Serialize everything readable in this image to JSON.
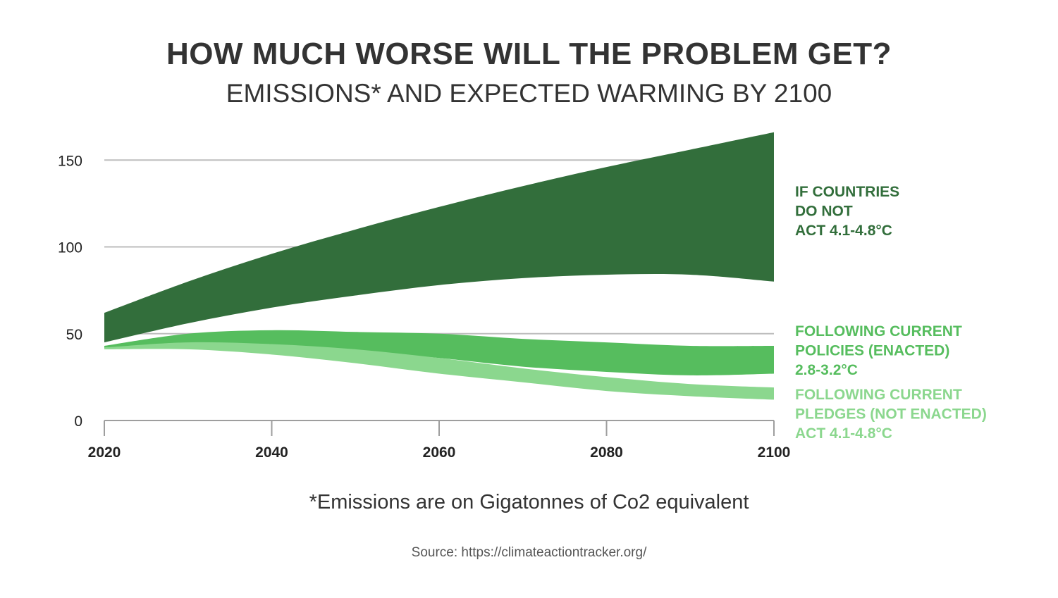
{
  "header": {
    "title": "HOW MUCH WORSE WILL THE PROBLEM GET?",
    "subtitle": "EMISSIONS* AND EXPECTED WARMING BY 2100"
  },
  "footer": {
    "footnote": "*Emissions are on Gigatonnes of Co2 equivalent",
    "source": "Source: https://climateactiontracker.org/"
  },
  "chart_data": {
    "type": "area",
    "title": "",
    "xlabel": "",
    "ylabel": "",
    "xlim": [
      2020,
      2100
    ],
    "ylim": [
      0,
      160
    ],
    "x_ticks": [
      2020,
      2040,
      2060,
      2080,
      2100
    ],
    "y_ticks": [
      0,
      50,
      100,
      150
    ],
    "grid": "horizontal",
    "legend": "right",
    "series": [
      {
        "name": "IF COUNTRIES DO NOT ACT 4.1-4.8°C",
        "label_lines": [
          "IF COUNTRIES",
          "DO NOT",
          "ACT 4.1-4.8°C"
        ],
        "color": "#326e3b",
        "x": [
          2020,
          2030,
          2040,
          2050,
          2060,
          2070,
          2080,
          2090,
          2100
        ],
        "upper": [
          62,
          80,
          96,
          110,
          123,
          135,
          146,
          156,
          166
        ],
        "lower": [
          45,
          56,
          65,
          72,
          78,
          82,
          84,
          84,
          80
        ]
      },
      {
        "name": "FOLLOWING CURRENT POLICIES (ENACTED) 2.8-3.2°C",
        "label_lines": [
          "FOLLOWING CURRENT",
          "POLICIES (ENACTED)",
          "2.8-3.2°C"
        ],
        "color": "#56bd5e",
        "x": [
          2020,
          2030,
          2040,
          2050,
          2060,
          2070,
          2080,
          2090,
          2100
        ],
        "upper": [
          43,
          50,
          52,
          51,
          50,
          47,
          45,
          43,
          43
        ],
        "lower": [
          42,
          44,
          43,
          40,
          36,
          31,
          28,
          26,
          27
        ]
      },
      {
        "name": "FOLLOWING CURRENT PLEDGES (NOT ENACTED) ACT 4.1-4.8°C",
        "label_lines": [
          "FOLLOWING CURRENT",
          "PLEDGES (NOT ENACTED)",
          "ACT 4.1-4.8°C"
        ],
        "color": "#8bd78e",
        "x": [
          2020,
          2030,
          2040,
          2050,
          2060,
          2070,
          2080,
          2090,
          2100
        ],
        "upper": [
          42,
          45,
          44,
          41,
          36,
          30,
          25,
          21,
          19
        ],
        "lower": [
          41,
          41,
          38,
          33,
          27,
          22,
          17,
          14,
          12
        ]
      }
    ]
  }
}
